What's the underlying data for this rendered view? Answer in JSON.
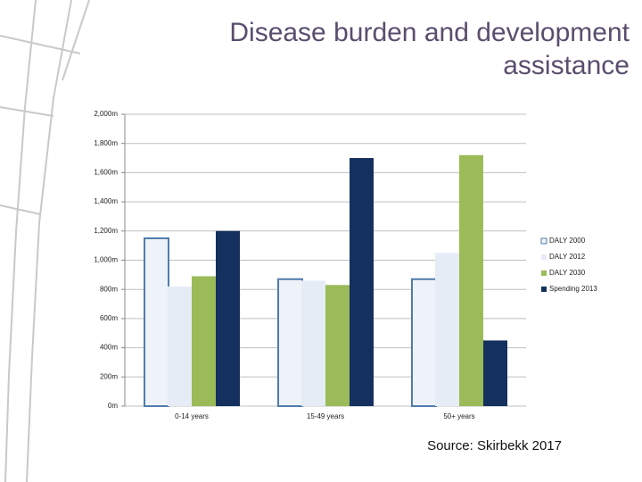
{
  "chart_data": {
    "type": "bar",
    "title": "Disease burden and development assistance",
    "source": "Source: Skirbekk 2017",
    "categories": [
      "0-14 years",
      "15-49 years",
      "50+ years"
    ],
    "series": [
      {
        "name": "DALY 2000",
        "color": "#eef2f9",
        "stroke": "#4f7cac",
        "values": [
          1150,
          870,
          870
        ]
      },
      {
        "name": "DALY 2012",
        "color": "#e6ecf6",
        "values": [
          820,
          860,
          1050
        ]
      },
      {
        "name": "DALY 2030",
        "color": "#9bbb59",
        "values": [
          890,
          830,
          1720
        ]
      },
      {
        "name": "Spending 2013",
        "color": "#14305e",
        "values": [
          1200,
          1700,
          450
        ]
      }
    ],
    "ylim": [
      0,
      2000
    ],
    "yticks": [
      {
        "value": 0,
        "label": "0m"
      },
      {
        "value": 200,
        "label": "200m"
      },
      {
        "value": 400,
        "label": "400m"
      },
      {
        "value": 600,
        "label": "600m"
      },
      {
        "value": 800,
        "label": "800m"
      },
      {
        "value": 1000,
        "label": "1,000m"
      },
      {
        "value": 1200,
        "label": "1,200m"
      },
      {
        "value": 1400,
        "label": "1,400m"
      },
      {
        "value": 1600,
        "label": "1,600m"
      },
      {
        "value": 1800,
        "label": "1,800m"
      },
      {
        "value": 2000,
        "label": "2,000m"
      }
    ],
    "grid": true,
    "legend": "right"
  }
}
